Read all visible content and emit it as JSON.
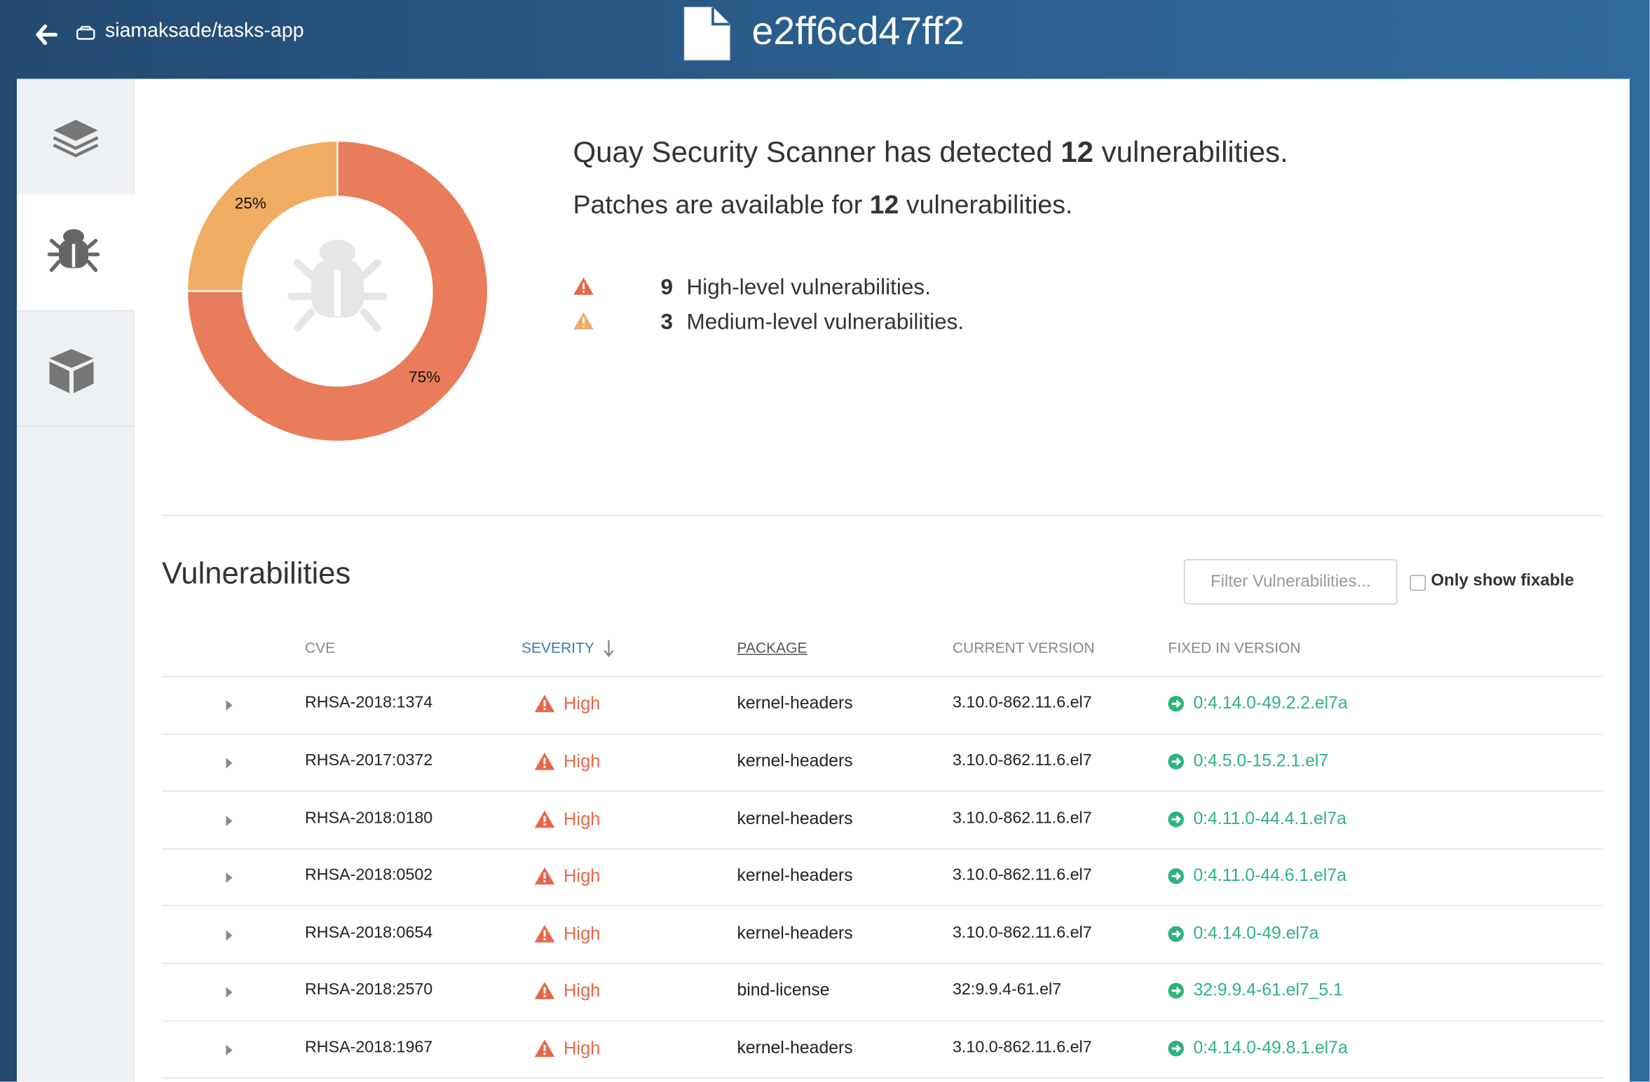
{
  "header": {
    "repository": "siamaksade/tasks-app",
    "title": "e2ff6cd47ff2"
  },
  "chart_data": {
    "type": "pie",
    "values": [
      75,
      25
    ],
    "value_labels": [
      "75%",
      "25%"
    ],
    "colors": [
      "#e97c5a",
      "#f0ac62"
    ],
    "donut": true
  },
  "summary": {
    "detected_prefix": "Quay Security Scanner has detected",
    "detected_count": 12,
    "detected_suffix": "vulnerabilities.",
    "patches_prefix": "Patches are available for",
    "patches_count": 12,
    "patches_suffix": "vulnerabilities.",
    "levels": [
      {
        "count": 9,
        "label": "High-level vulnerabilities.",
        "color": "#e5674a"
      },
      {
        "count": 3,
        "label": "Medium-level vulnerabilities.",
        "color": "#f0ac62"
      }
    ]
  },
  "vulnerabilities": {
    "title": "Vulnerabilities",
    "filter_placeholder": "Filter Vulnerabilities...",
    "fixable_label": "Only show fixable",
    "columns": [
      "CVE",
      "SEVERITY",
      "PACKAGE",
      "CURRENT VERSION",
      "FIXED IN VERSION"
    ],
    "rows": [
      [
        "RHSA-2018:1374",
        "High",
        "kernel-headers",
        "3.10.0-862.11.6.el7",
        "0:4.14.0-49.2.2.el7a"
      ],
      [
        "RHSA-2017:0372",
        "High",
        "kernel-headers",
        "3.10.0-862.11.6.el7",
        "0:4.5.0-15.2.1.el7"
      ],
      [
        "RHSA-2018:0180",
        "High",
        "kernel-headers",
        "3.10.0-862.11.6.el7",
        "0:4.11.0-44.4.1.el7a"
      ],
      [
        "RHSA-2018:0502",
        "High",
        "kernel-headers",
        "3.10.0-862.11.6.el7",
        "0:4.11.0-44.6.1.el7a"
      ],
      [
        "RHSA-2018:0654",
        "High",
        "kernel-headers",
        "3.10.0-862.11.6.el7",
        "0:4.14.0-49.el7a"
      ],
      [
        "RHSA-2018:2570",
        "High",
        "bind-license",
        "32:9.9.4-61.el7",
        "32:9.9.4-61.el7_5.1"
      ],
      [
        "RHSA-2018:1967",
        "High",
        "kernel-headers",
        "3.10.0-862.11.6.el7",
        "0:4.14.0-49.8.1.el7a"
      ]
    ]
  }
}
